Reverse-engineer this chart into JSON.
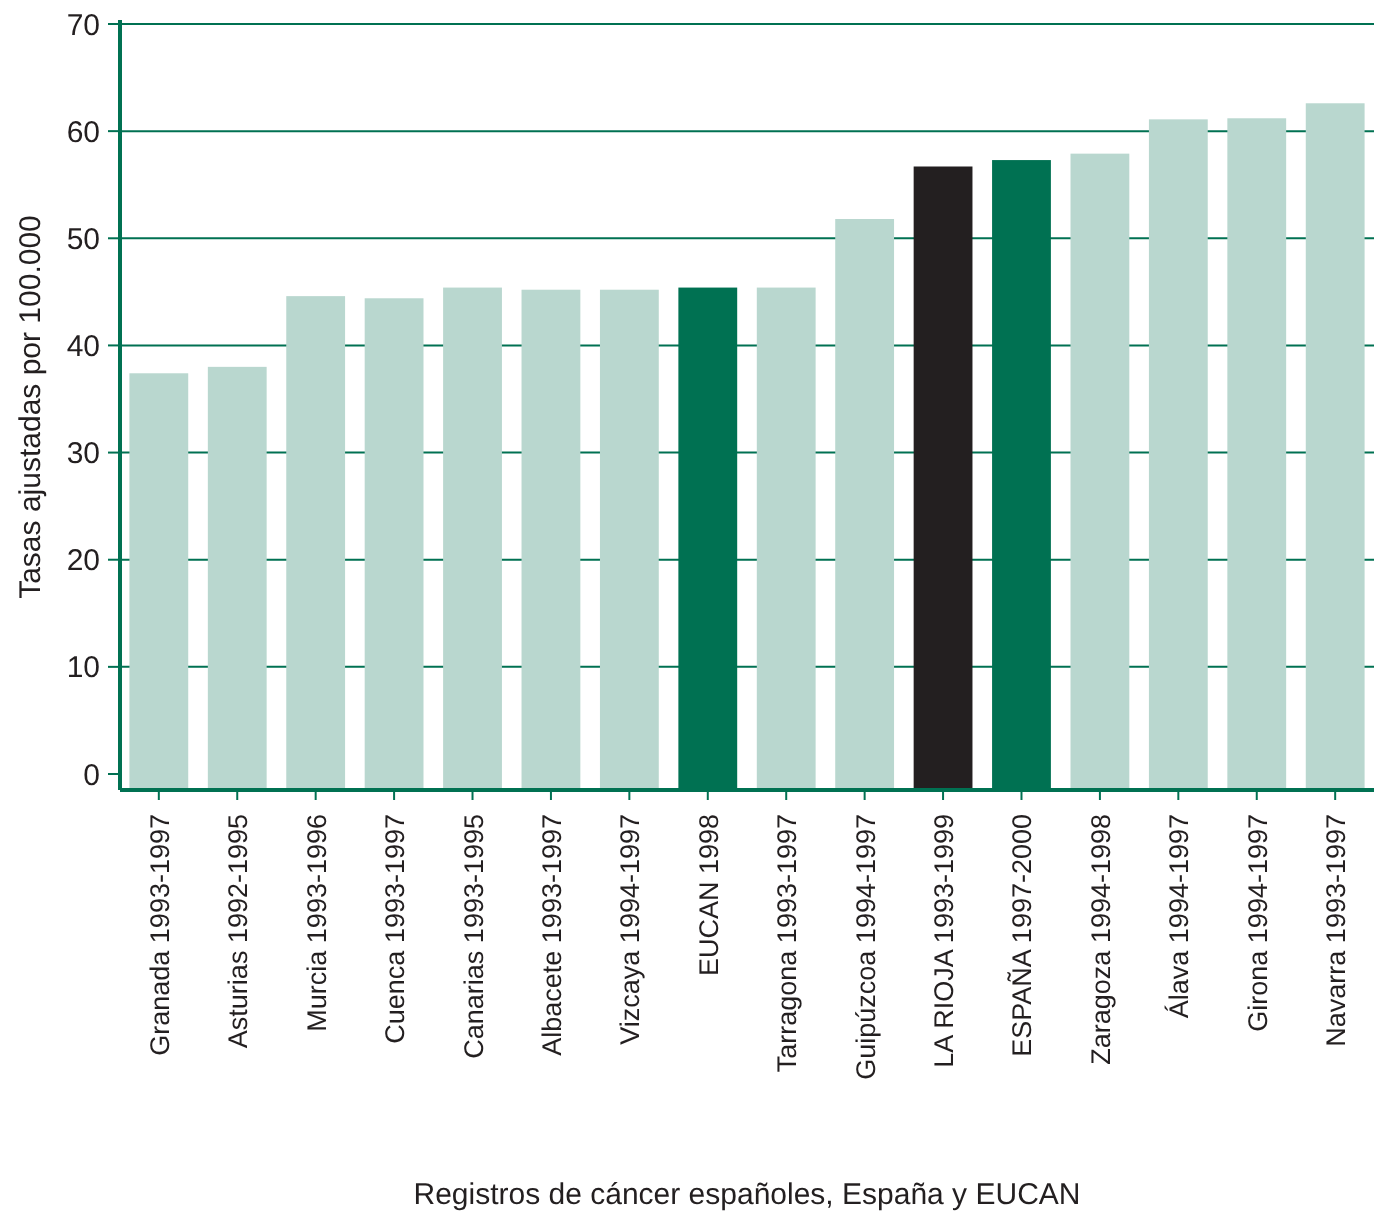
{
  "chart_data": {
    "type": "bar",
    "xlabel": "Registros de cáncer españoles, España y EUCAN",
    "ylabel": "Tasas ajustadas por 100.000",
    "categories": [
      "Granada 1993-1997",
      "Asturias 1992-1995",
      "Murcia 1993-1996",
      "Cuenca 1993-1997",
      "Canarias 1993-1995",
      "Albacete 1993-1997",
      "Vizcaya 1994-1997",
      "EUCAN 1998",
      "Tarragona 1993-1997",
      "Guipúzcoa 1994-1997",
      "LA RIOJA 1993-1999",
      "ESPAÑA 1997-2000",
      "Zaragoza 1994-1998",
      "Álava 1994-1997",
      "Girona 1994-1997",
      "Navarra 1993-1997"
    ],
    "values": [
      37.4,
      38.0,
      44.6,
      44.4,
      45.4,
      45.2,
      45.2,
      45.4,
      45.4,
      51.8,
      56.7,
      57.3,
      57.9,
      61.1,
      61.2,
      62.6
    ],
    "colors": [
      "#b9d7cf",
      "#b9d7cf",
      "#b9d7cf",
      "#b9d7cf",
      "#b9d7cf",
      "#b9d7cf",
      "#b9d7cf",
      "#007152",
      "#b9d7cf",
      "#b9d7cf",
      "#231f20",
      "#007152",
      "#b9d7cf",
      "#b9d7cf",
      "#b9d7cf",
      "#b9d7cf"
    ],
    "ylim": [
      0,
      70
    ],
    "yticks": [
      0,
      10,
      20,
      30,
      40,
      50,
      60,
      70
    ],
    "grid": "y"
  }
}
